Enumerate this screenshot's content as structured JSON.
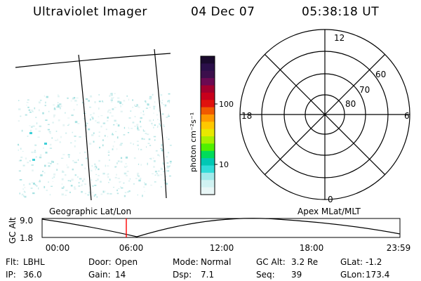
{
  "header": {
    "instrument": "Ultraviolet Imager",
    "date": "04 Dec 07",
    "time": "05:38:18 UT"
  },
  "colorbar": {
    "label": "photon cm⁻²s⁻¹",
    "ticks": [
      "100",
      "10"
    ],
    "colors": [
      "#1a0a2e",
      "#2b0f4a",
      "#3c0f4c",
      "#6b0a52",
      "#a3002e",
      "#c8001c",
      "#e0120e",
      "#f05a00",
      "#ff9a00",
      "#ffc800",
      "#e8e800",
      "#a8f000",
      "#50f000",
      "#00dc5a",
      "#00c8b4",
      "#30dcd8",
      "#a0eaea",
      "#d0f2f2",
      "#e8f6f6"
    ]
  },
  "polar_plot": {
    "mlt_labels": [
      "12",
      "18",
      "6",
      "0"
    ],
    "mlat_labels": [
      "60",
      "70",
      "80"
    ]
  },
  "timeline": {
    "left_label": "Geographic Lat/Lon",
    "right_label": "Apex MLat/MLT",
    "axis_title": "GC Alt",
    "y_ticks": [
      "9.0",
      "1.8"
    ],
    "x_ticks": [
      "00:00",
      "06:00",
      "12:00",
      "18:00",
      "23:59"
    ],
    "marker_color": "#ff0000"
  },
  "info": {
    "row1": [
      {
        "label": "Flt:",
        "value": "LBHL"
      },
      {
        "label": "Door:",
        "value": "Open"
      },
      {
        "label": "Mode:",
        "value": "Normal"
      },
      {
        "label": "GC Alt:",
        "value": "3.2 Re"
      },
      {
        "label": "GLat:",
        "value": "-1.2"
      }
    ],
    "row2": [
      {
        "label": "IP:",
        "value": "36.0"
      },
      {
        "label": "Gain:",
        "value": "14"
      },
      {
        "label": "Dsp:",
        "value": "7.1"
      },
      {
        "label": "Seq:",
        "value": "39"
      },
      {
        "label": "GLon:",
        "value": "173.4"
      }
    ]
  }
}
